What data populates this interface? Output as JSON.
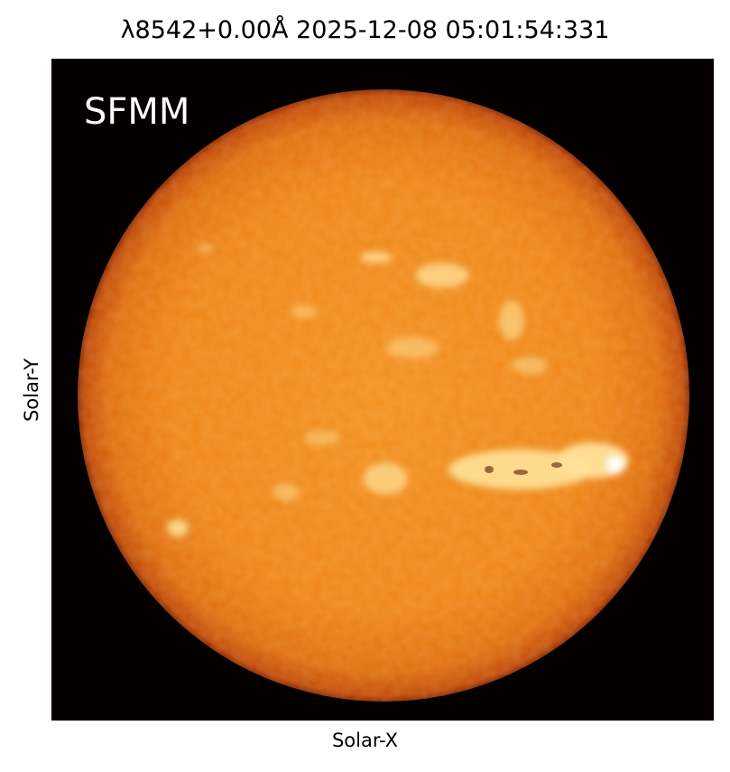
{
  "figure": {
    "title": "λ8542+0.00Å 2025-12-08 05:01:54:331",
    "instrument_label": "SFMM",
    "xlabel": "Solar-X",
    "ylabel": "Solar-Y"
  },
  "colors": {
    "background": "#040000",
    "disk_center": "#f08a1c",
    "disk_limb": "#b83a05",
    "plage": "#ffe9a0"
  }
}
